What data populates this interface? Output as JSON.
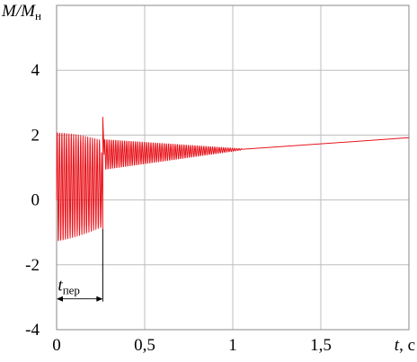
{
  "chart_data": {
    "type": "line",
    "ylabel": {
      "main": "M/M",
      "sub": "н"
    },
    "xlabel": {
      "main": "t",
      "unit": ", с"
    },
    "xlim": [
      0,
      2.0
    ],
    "ylim": [
      -4,
      6
    ],
    "xticks": [
      {
        "value": 0,
        "label": "0"
      },
      {
        "value": 0.5,
        "label": "0,5"
      },
      {
        "value": 1,
        "label": "1"
      },
      {
        "value": 1.5,
        "label": "1,5"
      }
    ],
    "yticks": [
      {
        "value": -4,
        "label": "-4"
      },
      {
        "value": -2,
        "label": "-2"
      },
      {
        "value": 0,
        "label": "0"
      },
      {
        "value": 2,
        "label": "2"
      },
      {
        "value": 4,
        "label": "4"
      }
    ],
    "grid": true,
    "series": [
      {
        "color": "#e8141c",
        "segments": [
          {
            "kind": "oscillation",
            "t_start": 0.0,
            "t_end": 0.255,
            "frequency_hz": 75,
            "center_start": 0.4,
            "center_end": 0.5,
            "amp_start": 1.75,
            "amp_end": 1.35,
            "value_at_start": 0.0
          },
          {
            "kind": "spike",
            "t": 0.262,
            "min": -0.9,
            "max": 2.55
          },
          {
            "kind": "oscillation",
            "t_start": 0.27,
            "t_end": 1.05,
            "frequency_hz": 80,
            "center_start": 1.4,
            "center_end": 1.56,
            "amp_start": 0.48,
            "amp_end": 0.02
          },
          {
            "kind": "linear",
            "t_start": 1.05,
            "t_end": 2.0,
            "v_start": 1.56,
            "v_end": 1.92
          }
        ]
      }
    ],
    "annotations": [
      {
        "type": "interval",
        "label": {
          "main": "t",
          "sub": "пер"
        },
        "t_start": 0.0,
        "t_end": 0.262,
        "y": -3.05
      }
    ]
  }
}
